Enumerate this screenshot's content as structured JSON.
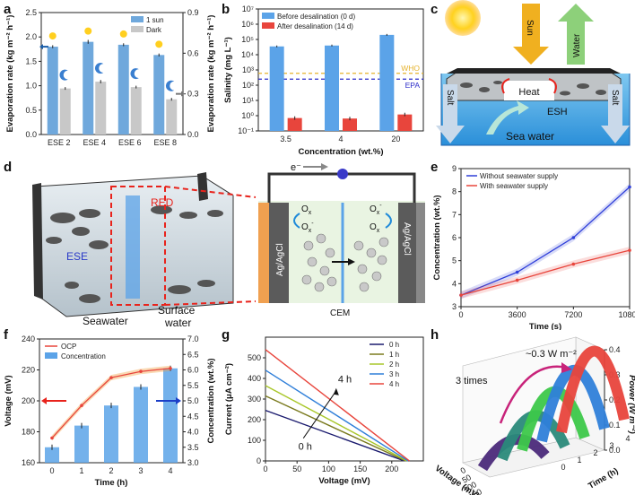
{
  "panels": [
    "a",
    "b",
    "c",
    "d",
    "e",
    "f",
    "g",
    "h"
  ],
  "chart_data": [
    {
      "id": "a",
      "type": "bar",
      "categories": [
        "ESE 2",
        "ESE 4",
        "ESE 6",
        "ESE 8"
      ],
      "series": [
        {
          "name": "1 sun",
          "values": [
            1.8,
            1.9,
            1.84,
            1.63
          ],
          "errors": [
            0.03,
            0.04,
            0.03,
            0.03
          ],
          "color": "#6fa8dc",
          "axis": "left"
        },
        {
          "name": "Dark",
          "values": [
            0.34,
            0.39,
            0.35,
            0.26
          ],
          "errors": [
            0.01,
            0.012,
            0.01,
            0.01
          ],
          "color": "#c8c8c8",
          "axis": "right"
        }
      ],
      "ylabel": "Evaporation rate (kg m⁻² h⁻¹)",
      "ylabel2": "Evaporation rate (kg m⁻² h⁻¹)",
      "ylim": [
        0,
        2.5
      ],
      "yticks": [
        "0.0",
        "0.5",
        "1.0",
        "1.5",
        "2.0",
        "2.5"
      ],
      "ylim2": [
        0,
        0.9
      ],
      "yticks2": [
        "0.0",
        "0.3",
        "0.6",
        "0.9"
      ]
    },
    {
      "id": "b",
      "type": "bar",
      "categories": [
        "3.5",
        "4",
        "20"
      ],
      "series": [
        {
          "name": "Before desalination (0 d)",
          "values": [
            35000,
            40000,
            200000
          ],
          "color": "#5ba3e8"
        },
        {
          "name": "After desalination (14 d)",
          "values": [
            0.7,
            0.65,
            1.2
          ],
          "color": "#e8453c"
        }
      ],
      "scale": "log",
      "ylim": [
        0.1,
        10000000
      ],
      "yticks": [
        "10⁻¹",
        "10⁰",
        "10¹",
        "10²",
        "10³",
        "10⁴",
        "10⁵",
        "10⁶",
        "10⁷"
      ],
      "reference_lines": [
        {
          "label": "WHO",
          "value": 600,
          "color": "#e6b32e"
        },
        {
          "label": "EPA",
          "value": 250,
          "color": "#2a2ac8"
        }
      ],
      "xlabel": "Concentration (wt.%)",
      "ylabel": "Salinity (mg L⁻¹)"
    },
    {
      "id": "e",
      "type": "line",
      "x": [
        0,
        3600,
        7200,
        10800
      ],
      "series": [
        {
          "name": "Without seawater supply",
          "values": [
            3.5,
            4.5,
            6.0,
            8.2
          ],
          "color": "#2f3fd9"
        },
        {
          "name": "With seawater supply",
          "values": [
            3.5,
            4.15,
            4.85,
            5.45
          ],
          "color": "#e8453c"
        }
      ],
      "xlabel": "Time (s)",
      "ylabel": "Concentration (wt.%)",
      "xlim": [
        0,
        10800
      ],
      "xticks": [
        "0",
        "3600",
        "7200",
        "10800"
      ],
      "ylim": [
        3,
        9
      ],
      "yticks": [
        "3",
        "4",
        "5",
        "6",
        "7",
        "8",
        "9"
      ]
    },
    {
      "id": "f",
      "type": "bar",
      "x": [
        0,
        1,
        2,
        3,
        4
      ],
      "series": [
        {
          "name": "OCP",
          "values": [
            176,
            197,
            215,
            219,
            221
          ],
          "color": "#e8453c",
          "axis": "left",
          "kind": "line"
        },
        {
          "name": "Concentration",
          "values": [
            3.5,
            4.2,
            4.85,
            5.45,
            6.05
          ],
          "color": "#5ba3e8",
          "axis": "right",
          "kind": "bar"
        }
      ],
      "xlabel": "Time (h)",
      "ylabel": "Voltage (mV)",
      "ylabel2": "Concentration (wt.%)",
      "ylim": [
        160,
        240
      ],
      "yticks": [
        "160",
        "180",
        "200",
        "220",
        "240"
      ],
      "ylim2": [
        3.0,
        7.0
      ],
      "yticks2": [
        "3.0",
        "3.5",
        "4.0",
        "4.5",
        "5.0",
        "5.5",
        "6.0",
        "6.5",
        "7.0"
      ],
      "xticks": [
        "0",
        "1",
        "2",
        "3",
        "4"
      ]
    },
    {
      "id": "g",
      "type": "line",
      "series": [
        {
          "name": "0 h",
          "isc": 245,
          "voc": 220,
          "color": "#1a1a6e"
        },
        {
          "name": "1 h",
          "isc": 315,
          "voc": 222,
          "color": "#7a7a1e"
        },
        {
          "name": "2 h",
          "isc": 365,
          "voc": 224,
          "color": "#a9c72a"
        },
        {
          "name": "3 h",
          "isc": 440,
          "voc": 226,
          "color": "#2f7fd9"
        },
        {
          "name": "4 h",
          "isc": 540,
          "voc": 228,
          "color": "#e8453c"
        }
      ],
      "xlabel": "Voltage (mV)",
      "ylabel": "Current (μA cm⁻²)",
      "xlim": [
        0,
        250
      ],
      "xticks": [
        "0",
        "50",
        "100",
        "150",
        "200"
      ],
      "ylim": [
        0,
        600
      ],
      "yticks": [
        "0",
        "100",
        "200",
        "300",
        "400",
        "500"
      ],
      "annotations": [
        "4 h",
        "0 h"
      ]
    },
    {
      "id": "h",
      "type": "area",
      "series": [
        {
          "name": "0 h",
          "peak": 0.1,
          "color": "#4b2a7a"
        },
        {
          "name": "1 h",
          "peak": 0.16,
          "color": "#2a8a7a"
        },
        {
          "name": "2 h",
          "peak": 0.22,
          "color": "#3dc84a"
        },
        {
          "name": "3 h",
          "peak": 0.27,
          "color": "#2f7fd9"
        },
        {
          "name": "4 h",
          "peak": 0.31,
          "color": "#e8453c"
        }
      ],
      "zlabel": "Power (W m⁻²)",
      "zticks": [
        "0.0",
        "0.1",
        "0.2",
        "0.3",
        "0.4"
      ],
      "xlabel": "Voltage (mV)",
      "xticks": [
        "0",
        "50",
        "100",
        "150",
        "200"
      ],
      "ylabel": "Time (h)",
      "yticks": [
        "0",
        "1",
        "2",
        "3",
        "4"
      ],
      "annotations": [
        "3 times",
        "~0.3 W m⁻²"
      ]
    }
  ],
  "panel_c": {
    "labels": {
      "sun": "Sun",
      "water": "Water",
      "heat": "Heat",
      "salt_left": "Salt",
      "salt_right": "Salt",
      "esh": "ESH",
      "sea": "Sea water"
    }
  },
  "panel_d": {
    "labels": {
      "red": "RED",
      "ese": "ESE",
      "seawater": "Seawater",
      "surface": "Surface",
      "surface2": "water",
      "electron": "e⁻",
      "ox1": "O",
      "ox1sub": "x",
      "ox2": "O",
      "ox2sub": "x",
      "ox2sup": "-",
      "ox3": "O",
      "ox3sub": "x",
      "ox3sup": "-",
      "ox4": "O",
      "ox4sub": "x",
      "left_el": "Ag/AgCl",
      "right_el": "Ag/AgCl",
      "cem": "CEM"
    }
  }
}
